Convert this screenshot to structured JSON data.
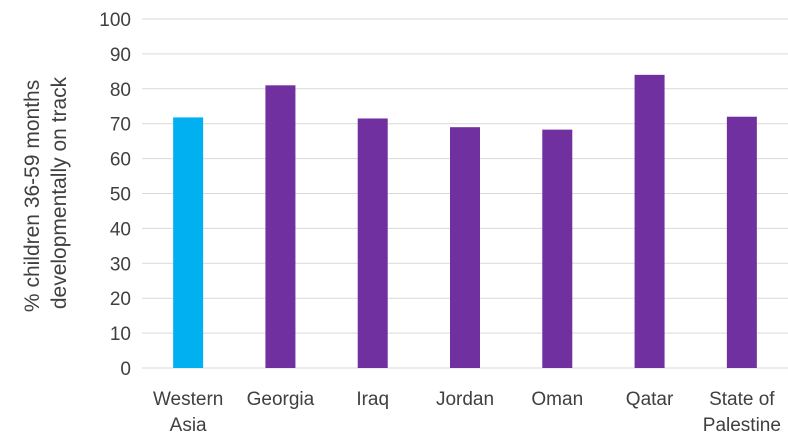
{
  "chart_data": {
    "type": "bar",
    "categories": [
      [
        "Western",
        "Asia"
      ],
      [
        "Georgia"
      ],
      [
        "Iraq"
      ],
      [
        "Jordan"
      ],
      [
        "Oman"
      ],
      [
        "Qatar"
      ],
      [
        "State of",
        "Palestine"
      ]
    ],
    "values": [
      71.8,
      81.0,
      71.5,
      69.0,
      68.3,
      84.0,
      72.0
    ],
    "bar_colors": [
      "#00b0f0",
      "#7030a0",
      "#7030a0",
      "#7030a0",
      "#7030a0",
      "#7030a0",
      "#7030a0"
    ],
    "ylabel": [
      "% children 36-59 months",
      "developmentally on track"
    ],
    "ylim": [
      0,
      100
    ],
    "yticks": [
      0,
      10,
      20,
      30,
      40,
      50,
      60,
      70,
      80,
      90,
      100
    ],
    "grid": true,
    "gridline_color": "#d9d9d9"
  }
}
